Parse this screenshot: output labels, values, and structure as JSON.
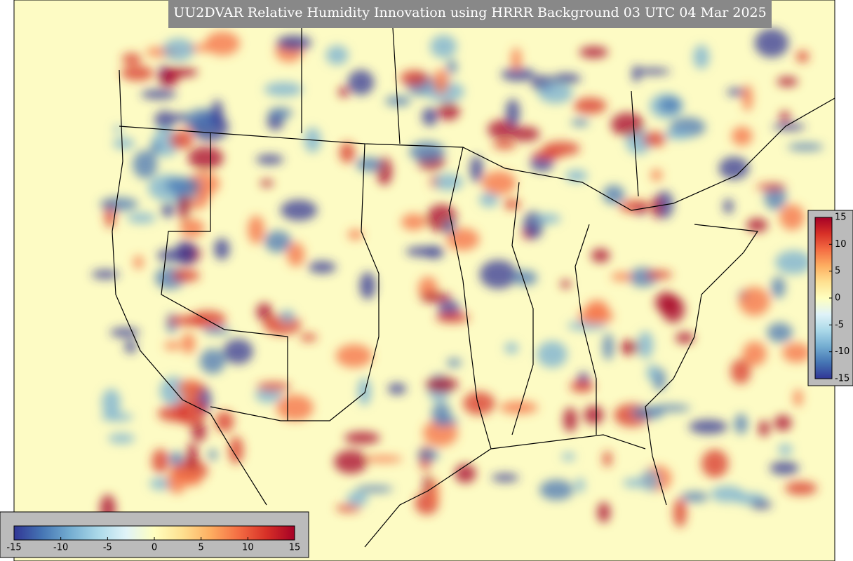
{
  "title": "UU2DVAR Relative Humidity Innovation using HRRR Background 03 UTC 04 Mar 2025",
  "colormap": [
    "#313695",
    "#4575b4",
    "#74add1",
    "#abd9e9",
    "#e0f3f8",
    "#ffffbf",
    "#fee090",
    "#fdae61",
    "#f46d43",
    "#d73027",
    "#a50026"
  ],
  "colorbar_bottom": {
    "range": [
      -15,
      15
    ],
    "ticks": [
      -15,
      -10,
      -5,
      0,
      5,
      10,
      15
    ]
  },
  "colorbar_right": {
    "range": [
      -15,
      15
    ],
    "ticks": [
      -15,
      -10,
      -5,
      0,
      5,
      10,
      15
    ]
  }
}
